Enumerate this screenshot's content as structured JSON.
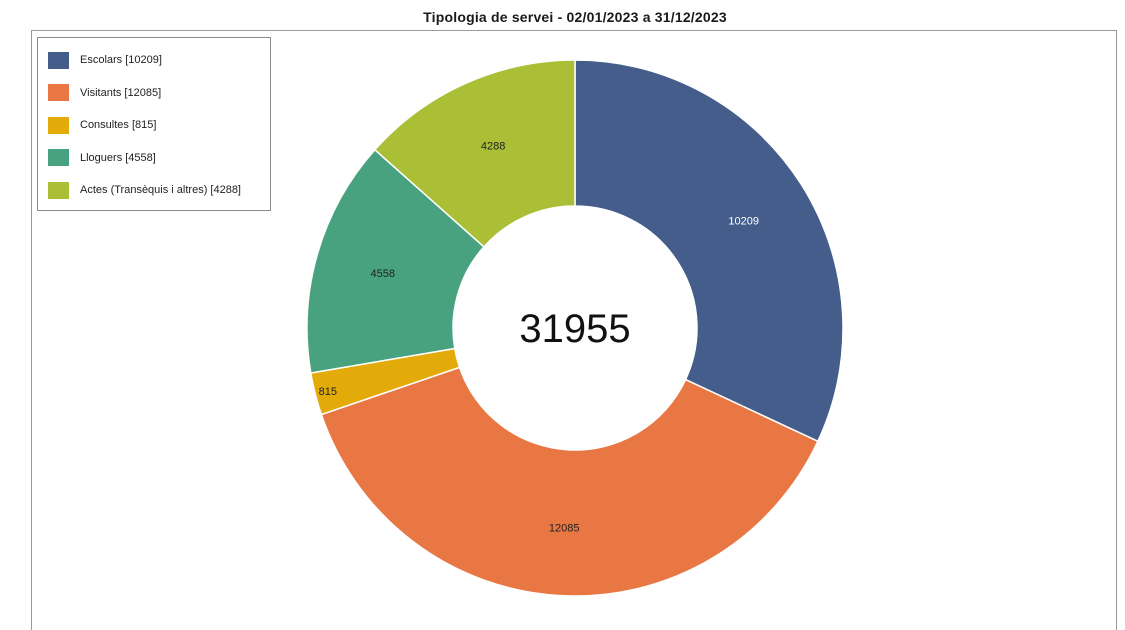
{
  "chart_data": {
    "type": "pie",
    "title": "Tipologia de servei - 02/01/2023 a 31/12/2023",
    "center_label": "31955",
    "slices": [
      {
        "legend": "Escolars [10209]",
        "value_label": "10209",
        "value": 10209,
        "color": "#445d8b",
        "label_color": "#ffffff"
      },
      {
        "legend": "Visitants [12085]",
        "value_label": "12085",
        "value": 12085,
        "color": "#e87743",
        "label_color": "#222222"
      },
      {
        "legend": "Consultes [815]",
        "value_label": "815",
        "value": 815,
        "color": "#e3ab0a",
        "label_color": "#222222"
      },
      {
        "legend": "Lloguers [4558]",
        "value_label": "4558",
        "value": 4558,
        "color": "#49a27f",
        "label_color": "#222222"
      },
      {
        "legend": "Actes (Transèquis i altres) [4288]",
        "value_label": "4288",
        "value": 4288,
        "color": "#aabf35",
        "label_color": "#222222"
      }
    ],
    "order": "clockwise from top",
    "donut": true,
    "legend_position": "top-left"
  }
}
